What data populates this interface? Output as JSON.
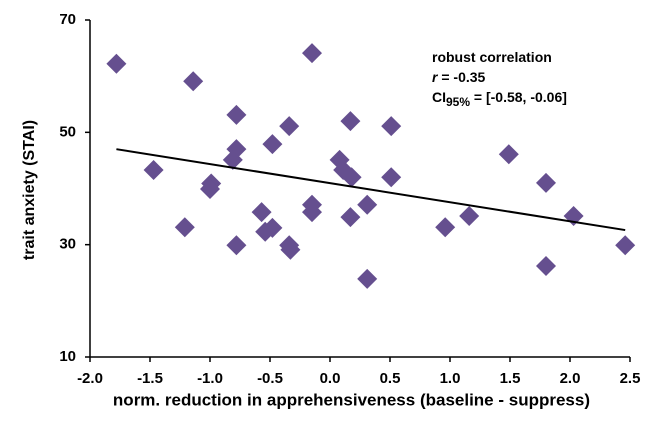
{
  "chart_data": {
    "type": "scatter",
    "xlabel": "norm. reduction in apprehensiveness (baseline - suppress)",
    "ylabel": "trait anxiety (STAI)",
    "annotation": {
      "line1": "robust correlation",
      "r_symbol": "r",
      "r_text": " = -0.35",
      "ci_prefix": "CI",
      "ci_sub": "95%",
      "ci_text": " = [-0.58, -0.06]"
    },
    "xlim": [
      -2,
      2.5
    ],
    "xticks": [
      {
        "value": -2,
        "label": "-2.0"
      },
      -1.5,
      {
        "value": -1,
        "label": "-1.0"
      },
      -0.5,
      {
        "value": 0,
        "label": "0.0"
      },
      0.5,
      {
        "value": 1,
        "label": "1.0"
      },
      1.5,
      {
        "value": 2,
        "label": "2.0"
      },
      2.5
    ],
    "ylim": [
      10,
      70
    ],
    "yticks": [
      10,
      30,
      50,
      70
    ],
    "color": "#654f8f",
    "series": [
      {
        "x": [
          -1.78,
          -1.14,
          -0.15,
          -1.47,
          -1.21,
          -0.99,
          -1.0,
          -0.78,
          -0.78,
          -0.81,
          -0.78,
          -0.57,
          -0.54,
          -0.48,
          -0.48,
          -0.34,
          -0.34,
          -0.33,
          -0.15,
          -0.15,
          0.08,
          0.11,
          0.18,
          0.17,
          0.17,
          0.31,
          0.31,
          0.51,
          0.51,
          0.96,
          1.16,
          1.49,
          1.8,
          1.8,
          2.03,
          2.46
        ],
        "values": [
          62.2,
          59.1,
          64.1,
          43.3,
          33.1,
          40.9,
          39.9,
          53.1,
          47.0,
          45.1,
          29.9,
          35.8,
          32.3,
          33.0,
          47.9,
          51.1,
          29.9,
          29.1,
          37.1,
          35.8,
          45.1,
          43.3,
          42.0,
          52.0,
          34.9,
          37.1,
          23.9,
          51.1,
          42.0,
          33.1,
          35.1,
          46.1,
          41.0,
          26.2,
          35.1,
          29.9
        ]
      }
    ],
    "fit": {
      "x": [
        -1.78,
        2.46
      ],
      "values": [
        47.0,
        32.6
      ]
    }
  }
}
